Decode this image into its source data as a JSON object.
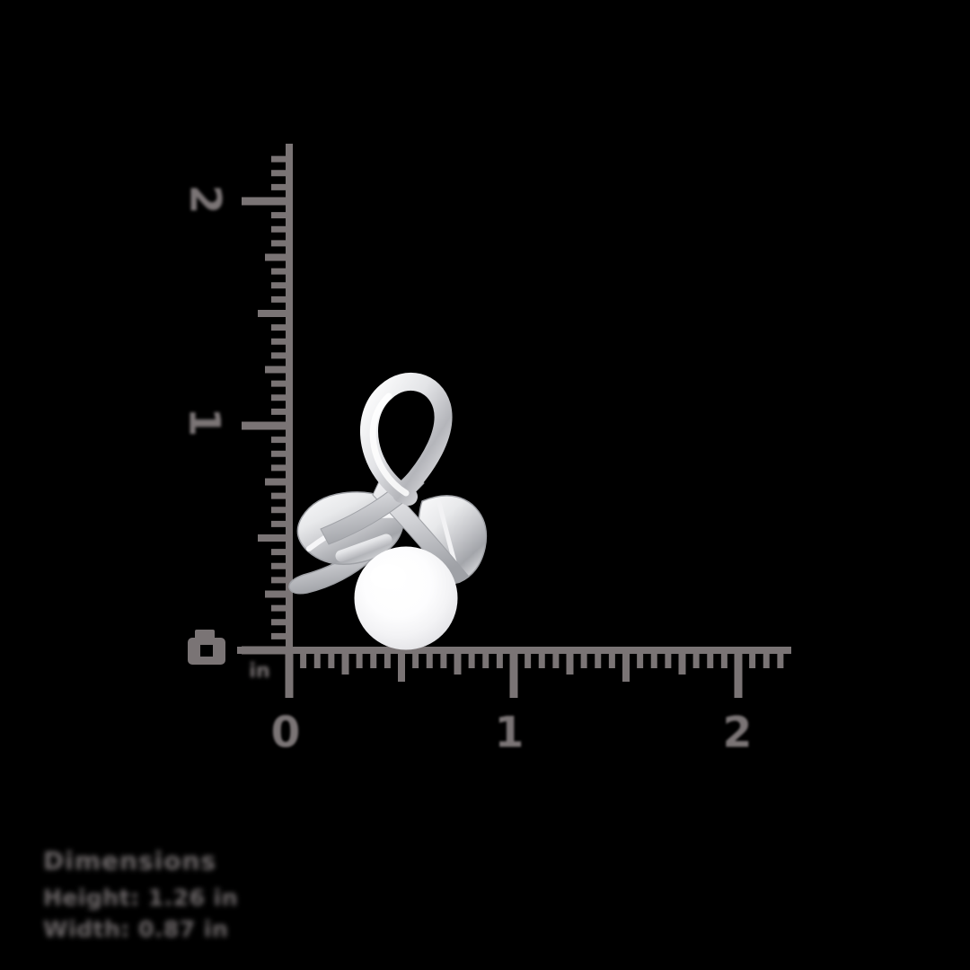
{
  "colors": {
    "background": "#000000",
    "ruler": "#7a7475",
    "label_text": "#7a7475",
    "dimensions_text": "#6f6a6b",
    "pearl": "#ffffff",
    "metal_silver": "#d7d8db"
  },
  "ruler": {
    "unit_label": "in",
    "vertical": {
      "labels": [
        {
          "text": "2"
        },
        {
          "text": "1"
        }
      ]
    },
    "horizontal": {
      "labels": [
        {
          "text": "0"
        },
        {
          "text": "1"
        },
        {
          "text": "2"
        }
      ]
    }
  },
  "icons": {
    "camera": "camera-icon"
  },
  "product": {
    "description": "silver leaf and pearl pendant"
  },
  "dimensions_block": {
    "title": "Dimensions",
    "line1": "Height: 1.26 in",
    "line2": "Width: 0.87 in"
  }
}
